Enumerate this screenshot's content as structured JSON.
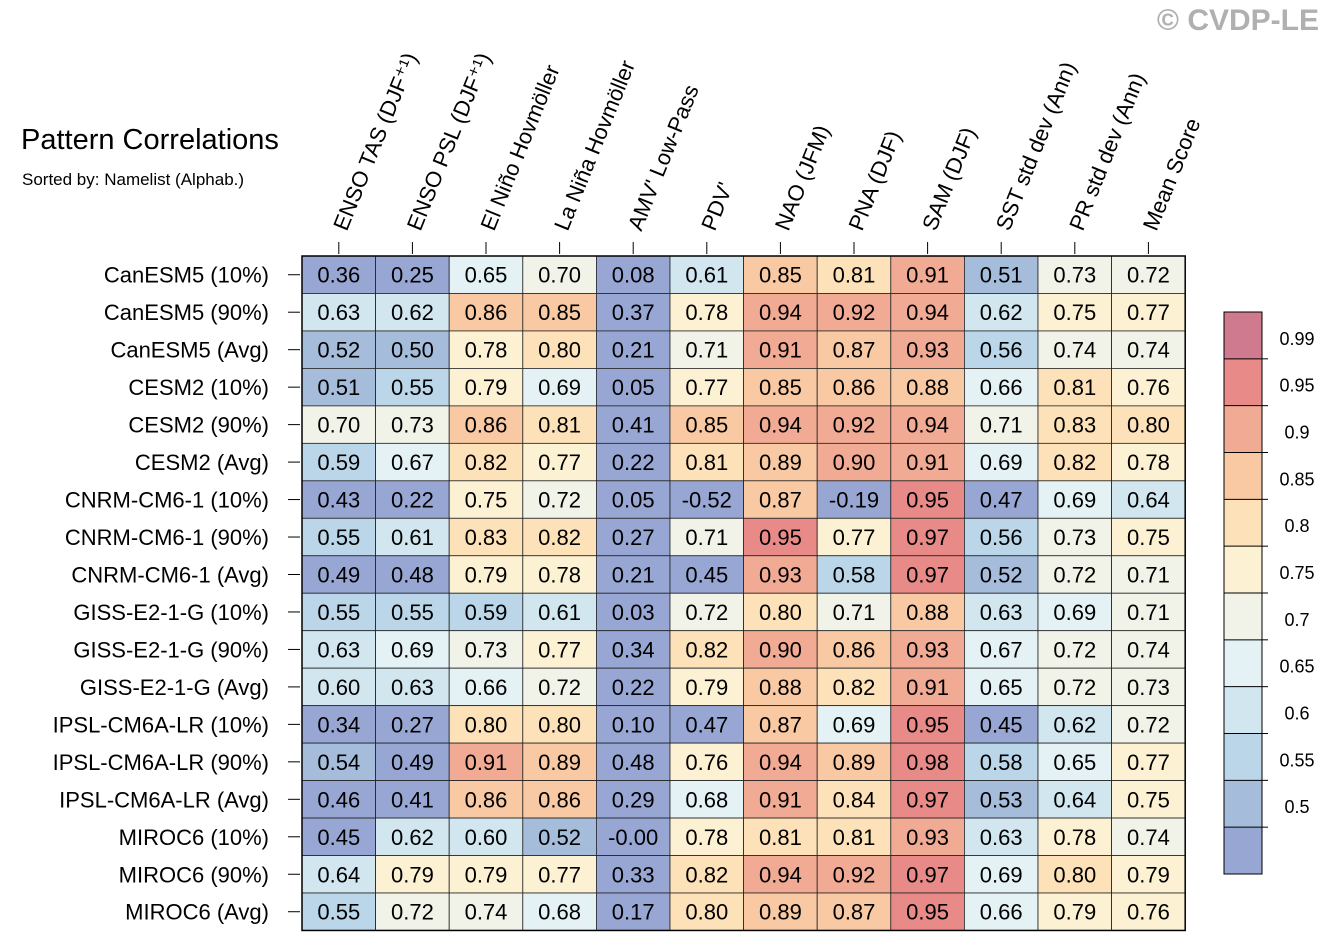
{
  "header": {
    "title": "Pattern Correlations",
    "subtitle": "Sorted by: Namelist (Alphab.)",
    "copyright": "© CVDP-LE"
  },
  "chart_data": {
    "type": "heatmap",
    "columns": [
      "ENSO TAS (DJF⁺¹)",
      "ENSO PSL (DJF⁺¹)",
      "El Niño Hovmöller",
      "La Niña Hovmöller",
      "AMV' Low-Pass",
      "PDV'",
      "NAO (JFM)",
      "PNA (DJF)",
      "SAM (DJF)",
      "SST std dev (Ann)",
      "PR std dev (Ann)",
      "Mean Score"
    ],
    "rows": [
      "CanESM5 (10%)",
      "CanESM5 (90%)",
      "CanESM5 (Avg)",
      "CESM2 (10%)",
      "CESM2 (90%)",
      "CESM2 (Avg)",
      "CNRM-CM6-1 (10%)",
      "CNRM-CM6-1 (90%)",
      "CNRM-CM6-1 (Avg)",
      "GISS-E2-1-G (10%)",
      "GISS-E2-1-G (90%)",
      "GISS-E2-1-G (Avg)",
      "IPSL-CM6A-LR (10%)",
      "IPSL-CM6A-LR (90%)",
      "IPSL-CM6A-LR (Avg)",
      "MIROC6 (10%)",
      "MIROC6 (90%)",
      "MIROC6 (Avg)"
    ],
    "values": [
      [
        "0.36",
        "0.25",
        "0.65",
        "0.70",
        "0.08",
        "0.61",
        "0.85",
        "0.81",
        "0.91",
        "0.51",
        "0.73",
        "0.72"
      ],
      [
        "0.63",
        "0.62",
        "0.86",
        "0.85",
        "0.37",
        "0.78",
        "0.94",
        "0.92",
        "0.94",
        "0.62",
        "0.75",
        "0.77"
      ],
      [
        "0.52",
        "0.50",
        "0.78",
        "0.80",
        "0.21",
        "0.71",
        "0.91",
        "0.87",
        "0.93",
        "0.56",
        "0.74",
        "0.74"
      ],
      [
        "0.51",
        "0.55",
        "0.79",
        "0.69",
        "0.05",
        "0.77",
        "0.85",
        "0.86",
        "0.88",
        "0.66",
        "0.81",
        "0.76"
      ],
      [
        "0.70",
        "0.73",
        "0.86",
        "0.81",
        "0.41",
        "0.85",
        "0.94",
        "0.92",
        "0.94",
        "0.71",
        "0.83",
        "0.80"
      ],
      [
        "0.59",
        "0.67",
        "0.82",
        "0.77",
        "0.22",
        "0.81",
        "0.89",
        "0.90",
        "0.91",
        "0.69",
        "0.82",
        "0.78"
      ],
      [
        "0.43",
        "0.22",
        "0.75",
        "0.72",
        "0.05",
        "-0.52",
        "0.87",
        "-0.19",
        "0.95",
        "0.47",
        "0.69",
        "0.64"
      ],
      [
        "0.55",
        "0.61",
        "0.83",
        "0.82",
        "0.27",
        "0.71",
        "0.95",
        "0.77",
        "0.97",
        "0.56",
        "0.73",
        "0.75"
      ],
      [
        "0.49",
        "0.48",
        "0.79",
        "0.78",
        "0.21",
        "0.45",
        "0.93",
        "0.58",
        "0.97",
        "0.52",
        "0.72",
        "0.71"
      ],
      [
        "0.55",
        "0.55",
        "0.59",
        "0.61",
        "0.03",
        "0.72",
        "0.80",
        "0.71",
        "0.88",
        "0.63",
        "0.69",
        "0.71"
      ],
      [
        "0.63",
        "0.69",
        "0.73",
        "0.77",
        "0.34",
        "0.82",
        "0.90",
        "0.86",
        "0.93",
        "0.67",
        "0.72",
        "0.74"
      ],
      [
        "0.60",
        "0.63",
        "0.66",
        "0.72",
        "0.22",
        "0.79",
        "0.88",
        "0.82",
        "0.91",
        "0.65",
        "0.72",
        "0.73"
      ],
      [
        "0.34",
        "0.27",
        "0.80",
        "0.80",
        "0.10",
        "0.47",
        "0.87",
        "0.69",
        "0.95",
        "0.45",
        "0.62",
        "0.72"
      ],
      [
        "0.54",
        "0.49",
        "0.91",
        "0.89",
        "0.48",
        "0.76",
        "0.94",
        "0.89",
        "0.98",
        "0.58",
        "0.65",
        "0.77"
      ],
      [
        "0.46",
        "0.41",
        "0.86",
        "0.86",
        "0.29",
        "0.68",
        "0.91",
        "0.84",
        "0.97",
        "0.53",
        "0.64",
        "0.75"
      ],
      [
        "0.45",
        "0.62",
        "0.60",
        "0.52",
        "-0.00",
        "0.78",
        "0.81",
        "0.81",
        "0.93",
        "0.63",
        "0.78",
        "0.74"
      ],
      [
        "0.64",
        "0.79",
        "0.79",
        "0.77",
        "0.33",
        "0.82",
        "0.94",
        "0.92",
        "0.97",
        "0.69",
        "0.80",
        "0.79"
      ],
      [
        "0.55",
        "0.72",
        "0.74",
        "0.68",
        "0.17",
        "0.80",
        "0.89",
        "0.87",
        "0.95",
        "0.66",
        "0.79",
        "0.76"
      ]
    ],
    "colorbar": {
      "levels": [
        0.5,
        0.55,
        0.6,
        0.65,
        0.7,
        0.75,
        0.8,
        0.85,
        0.9,
        0.95,
        0.99
      ],
      "labels": [
        "0.5",
        "0.55",
        "0.6",
        "0.65",
        "0.7",
        "0.75",
        "0.8",
        "0.85",
        "0.9",
        "0.95",
        "0.99"
      ],
      "colors": [
        "#98a6d3",
        "#a5bcdb",
        "#bad6e8",
        "#d1e6ef",
        "#e4f1f5",
        "#f1f3e9",
        "#fdf1d4",
        "#fde2b9",
        "#f8c9a2",
        "#f1aa94",
        "#e78a88",
        "#d07a90"
      ]
    }
  }
}
